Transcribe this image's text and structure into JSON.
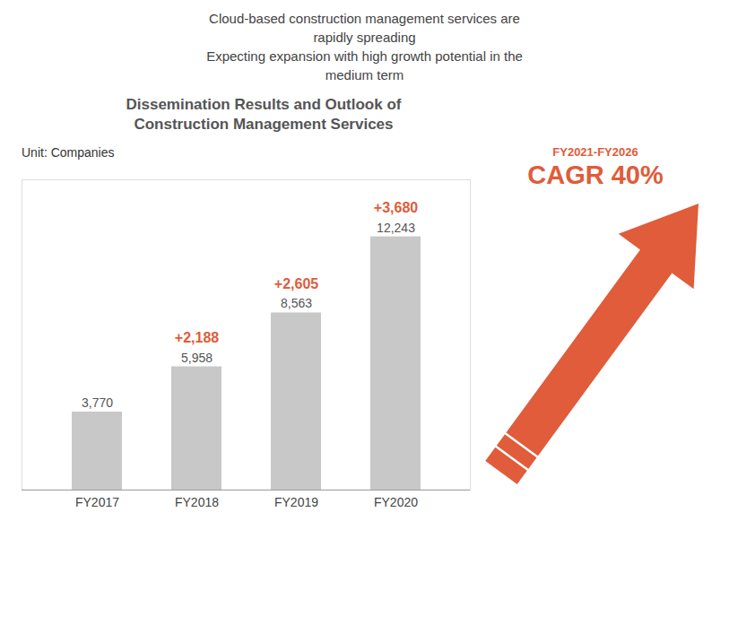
{
  "chart_data": {
    "type": "bar",
    "title": "Dissemination Results and Outlook of\nConstruction Management Services",
    "subtitle": [
      "Cloud-based construction management services are",
      "rapidly spreading",
      "Expecting expansion with high growth potential in the",
      "medium term"
    ],
    "categories": [
      "FY2017",
      "FY2018",
      "FY2019",
      "FY2020"
    ],
    "values": [
      3770,
      5958,
      8563,
      12243
    ],
    "value_labels": [
      "3,770",
      "5,958",
      "8,563",
      "12,243"
    ],
    "data_labels": true,
    "color": "#c8c8c8",
    "ylim": [
      0,
      15000
    ],
    "tick_labels": "x",
    "annotations": [
      {
        "text": "Unit: Companies"
      },
      {
        "text": "+2,188",
        "category": "FY2018",
        "color": "#e05c3a"
      },
      {
        "text": "+2,605",
        "category": "FY2019",
        "color": "#e05c3a"
      },
      {
        "text": "+3,680",
        "category": "FY2020",
        "color": "#e05c3a"
      },
      {
        "text": "FY2021-FY2026",
        "color": "#e05c3a"
      },
      {
        "text": "CAGR 40%",
        "color": "#e05c3a"
      }
    ]
  }
}
